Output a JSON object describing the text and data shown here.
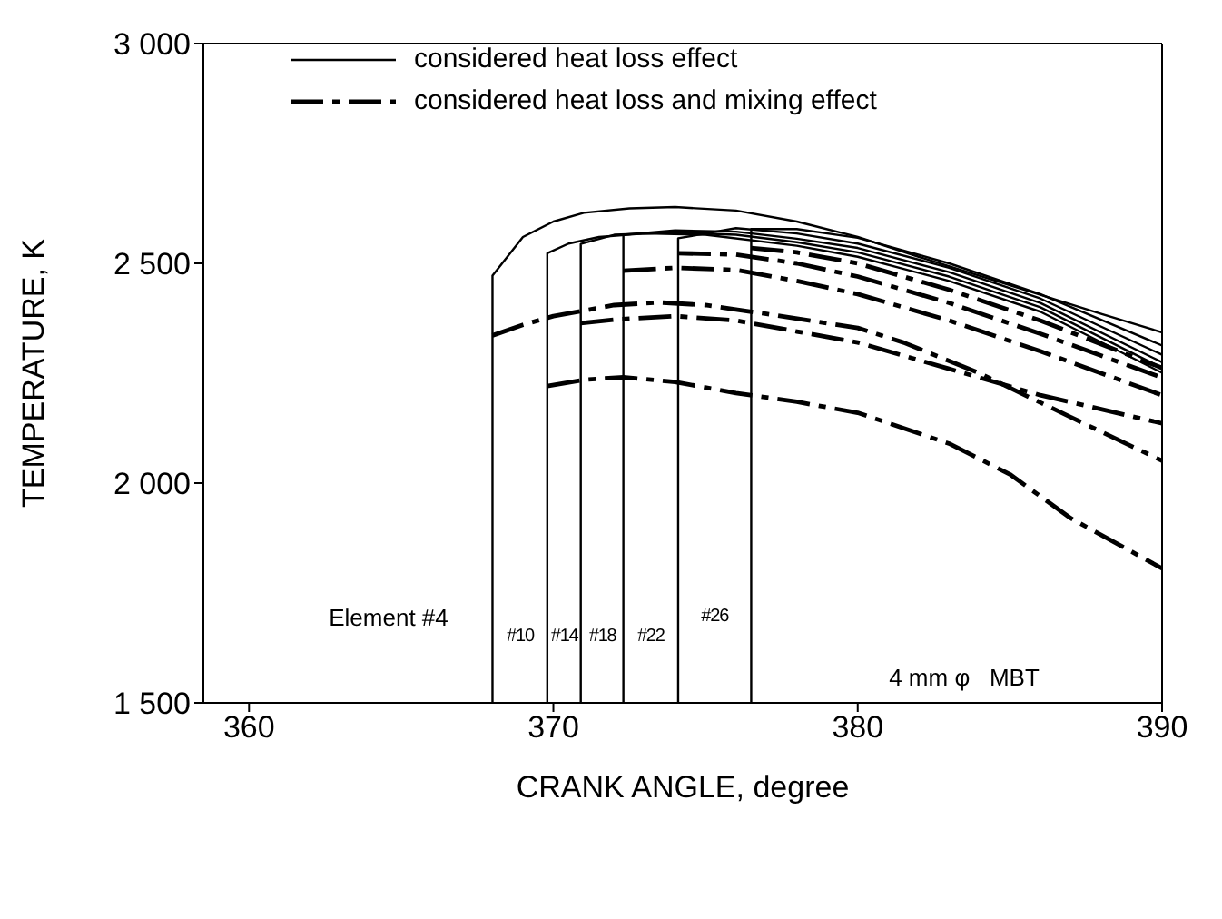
{
  "chart_data": {
    "type": "line",
    "xlabel": "CRANK ANGLE,  degree",
    "ylabel": "TEMPERATURE, K",
    "xlim": [
      358.5,
      390
    ],
    "xticks": [
      360,
      370,
      380,
      390
    ],
    "ylim": [
      1500,
      3000
    ],
    "yticks": [
      {
        "value": 1500,
        "label": "1 500"
      },
      {
        "value": 2000,
        "label": "2 000"
      },
      {
        "value": 2500,
        "label": "2 500"
      },
      {
        "value": 3000,
        "label": "3 000"
      }
    ],
    "legend": "top",
    "series": [
      {
        "name": "considered heat loss effect",
        "color": "#000000",
        "line_style": "solid",
        "x": [
          368.0,
          368.0,
          369,
          370,
          371,
          372.5,
          374,
          376,
          378,
          380,
          382,
          385,
          388,
          390
        ],
        "values": [
          1500,
          2472,
          2560,
          2595,
          2615,
          2625,
          2628,
          2620,
          2595,
          2560,
          2515,
          2450,
          2385,
          2343
        ]
      },
      {
        "color": "#000000",
        "line_style": "solid",
        "x": [
          369.8,
          369.8,
          370.5,
          371.5,
          373,
          375,
          378,
          380,
          383,
          386,
          390
        ],
        "values": [
          1500,
          2523,
          2545,
          2560,
          2568,
          2565,
          2540,
          2515,
          2460,
          2390,
          2251
        ]
      },
      {
        "color": "#000000",
        "line_style": "solid",
        "x": [
          370.9,
          370.9,
          372,
          374,
          376,
          378,
          380,
          383,
          386,
          390
        ],
        "values": [
          1500,
          2544,
          2565,
          2570,
          2565,
          2548,
          2525,
          2470,
          2400,
          2262
        ]
      },
      {
        "color": "#000000",
        "line_style": "solid",
        "x": [
          372.3,
          372.3,
          374,
          376,
          378,
          380,
          383,
          386,
          390
        ],
        "values": [
          1500,
          2565,
          2575,
          2572,
          2556,
          2535,
          2480,
          2410,
          2275
        ]
      },
      {
        "color": "#000000",
        "line_style": "solid",
        "x": [
          374.1,
          374.1,
          376,
          378,
          380,
          383,
          386,
          390
        ],
        "values": [
          1500,
          2557,
          2580,
          2568,
          2545,
          2490,
          2420,
          2292
        ]
      },
      {
        "color": "#000000",
        "line_style": "solid",
        "x": [
          376.5,
          376.5,
          378,
          380,
          383,
          386,
          390
        ],
        "values": [
          1500,
          2578,
          2578,
          2558,
          2500,
          2430,
          2313
        ]
      },
      {
        "name": "considered heat loss and mixing effect",
        "color": "#000000",
        "line_style": "dashed",
        "x": [
          368.0,
          369,
          370,
          372,
          373.5,
          375,
          377,
          380,
          381.5,
          384,
          387,
          390
        ],
        "values": [
          2336,
          2360,
          2380,
          2405,
          2411,
          2405,
          2385,
          2353,
          2320,
          2250,
          2150,
          2051
        ]
      },
      {
        "color": "#000000",
        "line_style": "dashed",
        "x": [
          369.8,
          371,
          372.3,
          374,
          376,
          378,
          380,
          383,
          385,
          387,
          390
        ],
        "values": [
          2221,
          2235,
          2241,
          2230,
          2205,
          2185,
          2160,
          2090,
          2020,
          1920,
          1806
        ]
      },
      {
        "color": "#000000",
        "line_style": "dashed",
        "x": [
          370.9,
          372,
          374,
          376,
          378,
          380,
          383,
          386,
          390
        ],
        "values": [
          2364,
          2372,
          2380,
          2370,
          2345,
          2320,
          2260,
          2200,
          2136
        ]
      },
      {
        "color": "#000000",
        "line_style": "dashed",
        "x": [
          372.3,
          374,
          376,
          378,
          380,
          383,
          386,
          390
        ],
        "values": [
          2483,
          2490,
          2485,
          2460,
          2430,
          2370,
          2300,
          2200
        ]
      },
      {
        "color": "#000000",
        "line_style": "dashed",
        "x": [
          374.1,
          376,
          378,
          380,
          383,
          386,
          390
        ],
        "values": [
          2523,
          2520,
          2500,
          2470,
          2410,
          2340,
          2240
        ]
      },
      {
        "color": "#000000",
        "line_style": "dashed",
        "x": [
          376.5,
          378,
          380,
          383,
          386,
          390
        ],
        "values": [
          2535,
          2525,
          2500,
          2440,
          2370,
          2262
        ]
      }
    ],
    "annotations": [
      "Element #4",
      "#10",
      "#14",
      "#18",
      "#22",
      "#26",
      "4 mm φ   MBT"
    ]
  }
}
